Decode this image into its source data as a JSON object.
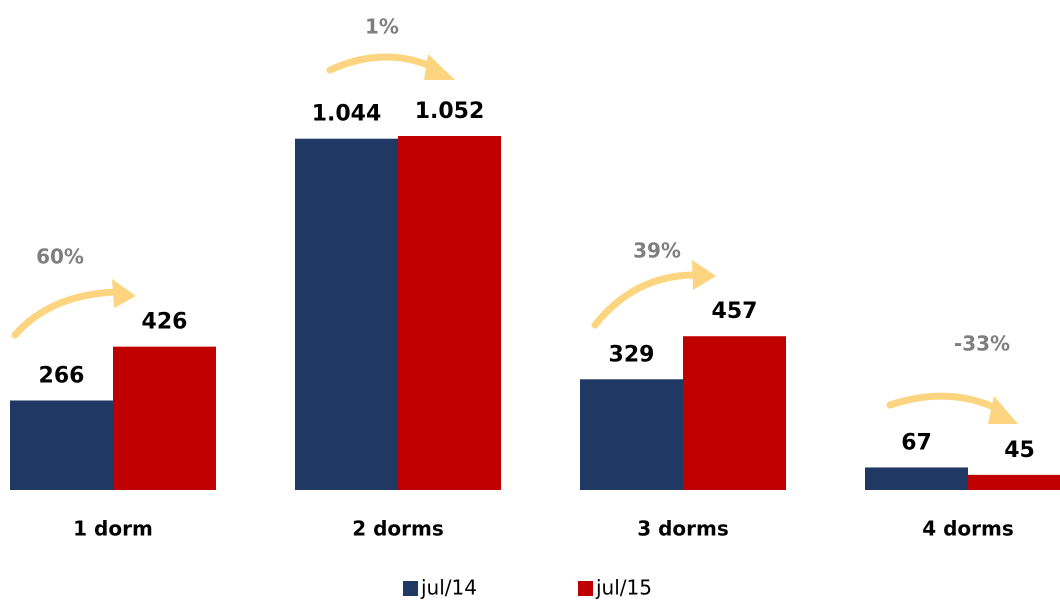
{
  "chart_data": {
    "type": "bar",
    "categories": [
      "1 dorm",
      "2 dorms",
      "3 dorms",
      "4 dorms"
    ],
    "series": [
      {
        "name": "jul/14",
        "color": "#1f3864",
        "values": [
          266,
          1044,
          329,
          67
        ],
        "value_labels": [
          "266",
          "1.044",
          "329",
          "67"
        ]
      },
      {
        "name": "jul/15",
        "color": "#c00000",
        "values": [
          426,
          1052,
          457,
          45
        ],
        "value_labels": [
          "426",
          "1.052",
          "457",
          "45"
        ]
      }
    ],
    "annotations": [
      "60%",
      "1%",
      "39%",
      "-33%"
    ]
  }
}
